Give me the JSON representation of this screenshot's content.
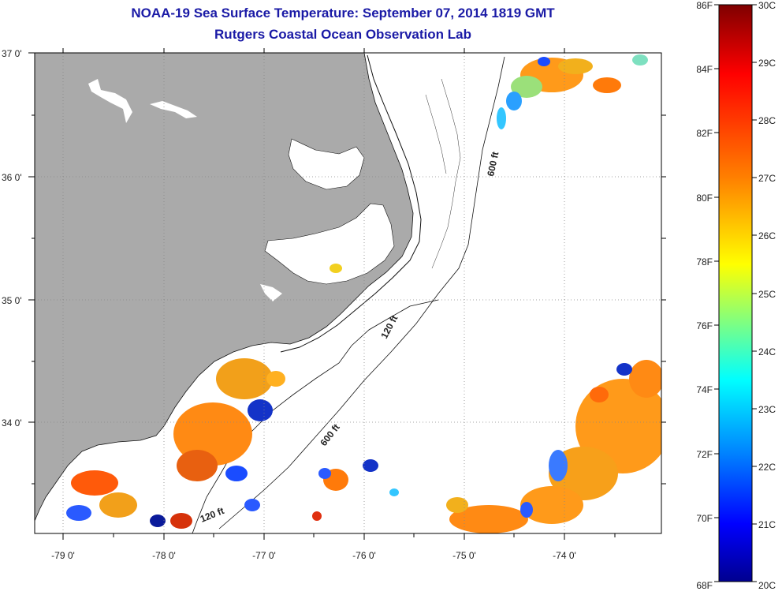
{
  "header": {
    "title": "NOAA-19 Sea Surface Temperature:  September 07, 2014 1819 GMT",
    "subtitle": "Rutgers Coastal Ocean Observation Lab"
  },
  "map": {
    "lat_labels": [
      "37 0'",
      "36 0'",
      "35 0'",
      "34 0'"
    ],
    "lon_labels": [
      "-79 0'",
      "-78 0'",
      "-77 0'",
      "-76 0'",
      "-75 0'",
      "-74 0'"
    ],
    "contours": {
      "c600_north": "600 ft",
      "c120": "120 ft",
      "c600_south": "600 ft",
      "c120_south": "120 ft"
    },
    "colors": {
      "land": "#aaaaaa",
      "ocean": "#ffffff",
      "grid": "#888888"
    }
  },
  "colorbar": {
    "fahrenheit_labels": [
      "86F",
      "84F",
      "82F",
      "80F",
      "78F",
      "76F",
      "74F",
      "72F",
      "70F",
      "68F"
    ],
    "celsius_labels": [
      "30C",
      "29C",
      "28C",
      "27C",
      "26C",
      "25C",
      "24C",
      "23C",
      "22C",
      "21C",
      "20C"
    ],
    "range_c": [
      20,
      30
    ],
    "range_f": [
      68,
      86
    ],
    "gradient": [
      "#7f0000",
      "#ff0000",
      "#ff8000",
      "#ffff00",
      "#80ff80",
      "#00ffff",
      "#0080ff",
      "#0000ff",
      "#00008f"
    ]
  }
}
